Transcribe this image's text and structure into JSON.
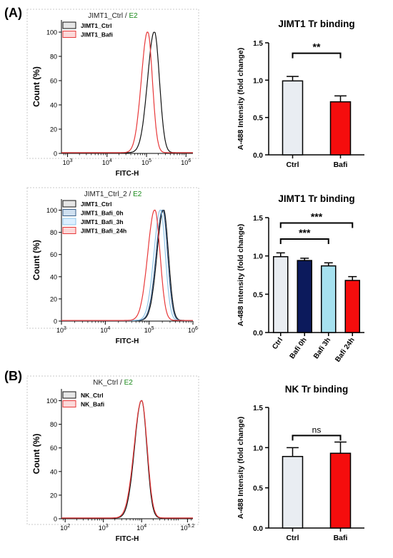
{
  "panel_labels": {
    "a": "(A)",
    "b": "(B)"
  },
  "colors": {
    "ctrl": "#111111",
    "bafi": "#e8393a",
    "bafi_0h": "#3a5f8a",
    "bafi_3h": "#8ec5e8",
    "bafi_24h": "#e8393a",
    "bar_ctrl": "#e9edf2",
    "bar_bafi": "#f50d0d",
    "bar_0h": "#0c1a5c",
    "bar_3h": "#a6e1ef",
    "bar_24h": "#f50d0d",
    "gate_green": "#1a8a1a"
  },
  "chart_data": [
    {
      "id": "hist1",
      "type": "line",
      "title_prefix": "JIMT1_Ctrl",
      "title_sep": " / ",
      "title_suffix": "E2",
      "xlabel": "FITC-H",
      "ylabel": "Count (%)",
      "x_scale": "log",
      "xlim": [
        700,
        1500000
      ],
      "ylim": [
        0,
        110
      ],
      "x_ticks": [
        {
          "v": 1000,
          "base": "10",
          "exp": "3"
        },
        {
          "v": 10000,
          "base": "10",
          "exp": "4"
        },
        {
          "v": 100000,
          "base": "10",
          "exp": "5"
        },
        {
          "v": 1000000,
          "base": "10",
          "exp": "6"
        }
      ],
      "y_ticks": [
        0,
        20,
        40,
        60,
        80,
        100
      ],
      "series": [
        {
          "name": "JIMT1_Ctrl",
          "color_key": "ctrl",
          "peak_log": 5.2,
          "width": 0.15
        },
        {
          "name": "JIMT1_Bafi",
          "color_key": "bafi",
          "peak_log": 5.03,
          "width": 0.14
        }
      ]
    },
    {
      "id": "hist2",
      "type": "line",
      "title_prefix": "JIMT1_Ctrl_2",
      "title_sep": " / ",
      "title_suffix": "E2",
      "xlabel": "FITC-H",
      "ylabel": "Count (%)",
      "x_scale": "log",
      "xlim": [
        1000,
        1000000
      ],
      "ylim": [
        0,
        110
      ],
      "x_ticks": [
        {
          "v": 1000,
          "base": "10",
          "exp": "3"
        },
        {
          "v": 10000,
          "base": "10",
          "exp": "4"
        },
        {
          "v": 100000,
          "base": "10",
          "exp": "5"
        },
        {
          "v": 1000000,
          "base": "10",
          "exp": "6"
        }
      ],
      "y_ticks": [
        0,
        20,
        40,
        60,
        80,
        100
      ],
      "series": [
        {
          "name": "JIMT1_Ctrl",
          "color_key": "ctrl",
          "peak_log": 5.33,
          "width": 0.13
        },
        {
          "name": "JIMT1_Bafi_0h",
          "color_key": "bafi_0h",
          "peak_log": 5.31,
          "width": 0.13
        },
        {
          "name": "JIMT1_Bafi_3h",
          "color_key": "bafi_3h",
          "peak_log": 5.26,
          "width": 0.13
        },
        {
          "name": "JIMT1_Bafi_24h",
          "color_key": "bafi_24h",
          "peak_log": 5.13,
          "width": 0.14
        }
      ]
    },
    {
      "id": "hist3",
      "type": "line",
      "title_prefix": "NK_Ctrl",
      "title_sep": " / ",
      "title_suffix": "E2",
      "xlabel": "FITC-H",
      "ylabel": "Count (%)",
      "x_scale": "log",
      "xlim": [
        80,
        220000
      ],
      "ylim": [
        0,
        110
      ],
      "x_ticks": [
        {
          "v": 100,
          "base": "10",
          "exp": "2"
        },
        {
          "v": 1000,
          "base": "10",
          "exp": "3"
        },
        {
          "v": 10000,
          "base": "10",
          "exp": "4"
        },
        {
          "v": 158489,
          "base": "10",
          "exp": "5.2"
        }
      ],
      "y_ticks": [
        0,
        20,
        40,
        60,
        80,
        100
      ],
      "series": [
        {
          "name": "NK_Ctrl",
          "color_key": "ctrl",
          "peak_log": 4.0,
          "width": 0.16
        },
        {
          "name": "NK_Bafi",
          "color_key": "bafi",
          "peak_log": 4.0,
          "width": 0.17
        }
      ]
    },
    {
      "id": "bar1",
      "type": "bar",
      "title": "JIMT1 Tr binding",
      "ylabel": "A-488 Intensity (fold change)",
      "ylim": [
        0,
        1.5
      ],
      "y_ticks": [
        "0.0",
        "0.5",
        "1.0",
        "1.5"
      ],
      "categories": [
        "Ctrl",
        "Bafi"
      ],
      "values": [
        0.99,
        0.71
      ],
      "errors": [
        0.06,
        0.08
      ],
      "bar_colors": [
        "bar_ctrl",
        "bar_bafi"
      ],
      "rotate_labels": false,
      "significance": [
        {
          "from": 0,
          "to": 1,
          "label": "**",
          "level": 1.36
        }
      ]
    },
    {
      "id": "bar2",
      "type": "bar",
      "title": "JIMT1 Tr binding",
      "ylabel": "A-488 Intensity (fold change)",
      "ylim": [
        0,
        1.5
      ],
      "y_ticks": [
        "0.0",
        "0.5",
        "1.0",
        "1.5"
      ],
      "categories": [
        "Ctrl",
        "Bafi 0h",
        "Bafi 3h",
        "Bafi 24h"
      ],
      "values": [
        0.99,
        0.94,
        0.87,
        0.68
      ],
      "errors": [
        0.05,
        0.03,
        0.04,
        0.05
      ],
      "bar_colors": [
        "bar_ctrl",
        "bar_0h",
        "bar_3h",
        "bar_24h"
      ],
      "rotate_labels": true,
      "significance": [
        {
          "from": 0,
          "to": 3,
          "label": "***",
          "level": 1.43
        },
        {
          "from": 0,
          "to": 2,
          "label": "***",
          "level": 1.22
        }
      ]
    },
    {
      "id": "bar3",
      "type": "bar",
      "title": "NK Tr binding",
      "ylabel": "A-488 Intensity (fold change)",
      "ylim": [
        0,
        1.5
      ],
      "y_ticks": [
        "0.0",
        "0.5",
        "1.0",
        "1.5"
      ],
      "categories": [
        "Ctrl",
        "Bafi"
      ],
      "values": [
        0.89,
        0.93
      ],
      "errors": [
        0.11,
        0.14
      ],
      "bar_colors": [
        "bar_ctrl",
        "bar_bafi"
      ],
      "rotate_labels": false,
      "significance": [
        {
          "from": 0,
          "to": 1,
          "label": "ns",
          "level": 1.15
        }
      ]
    }
  ]
}
